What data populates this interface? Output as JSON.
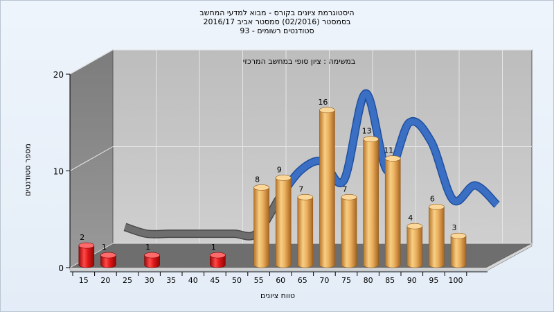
{
  "chart_data": {
    "type": "bar",
    "title_lines": [
      "היסטוגרמת ציונים בקורס - מבוא למדעי המחשב",
      "בסמסטר  (02/2016)  סמסטר אביב 2016/17",
      "סטודנטים רשומים - 93"
    ],
    "subtitle": "במשימה : ציון סופי במחשב המרכזי",
    "xlabel": "טווח ציונים",
    "ylabel": "מספר סטודנטים",
    "ylim": [
      0,
      20
    ],
    "yticks": [
      0,
      10,
      20
    ],
    "xticks": [
      15,
      20,
      25,
      30,
      35,
      40,
      45,
      50,
      55,
      60,
      65,
      70,
      75,
      80,
      85,
      90,
      95,
      100
    ],
    "bars": [
      {
        "x": 15,
        "value": 2,
        "label": "2"
      },
      {
        "x": 20,
        "value": 1,
        "label": "1"
      },
      {
        "x": 30,
        "value": 1,
        "label": "1"
      },
      {
        "x": 45,
        "value": 1,
        "label": "1"
      },
      {
        "x": 55,
        "value": 8,
        "label": "8"
      },
      {
        "x": 60,
        "value": 9,
        "label": "9"
      },
      {
        "x": 65,
        "value": 7,
        "label": "7"
      },
      {
        "x": 70,
        "value": 16,
        "label": "16"
      },
      {
        "x": 75,
        "value": 7,
        "label": "7"
      },
      {
        "x": 80,
        "value": 13,
        "label": "13"
      },
      {
        "x": 85,
        "value": 11,
        "label": "11"
      },
      {
        "x": 90,
        "value": 4,
        "label": "4"
      },
      {
        "x": 95,
        "value": 6,
        "label": "6"
      },
      {
        "x": 100,
        "value": 3,
        "label": "3"
      }
    ],
    "curve": [
      {
        "x": 20,
        "y": 3.2
      },
      {
        "x": 25,
        "y": 2.5
      },
      {
        "x": 30,
        "y": 2.5
      },
      {
        "x": 35,
        "y": 2.5
      },
      {
        "x": 40,
        "y": 2.5
      },
      {
        "x": 45,
        "y": 2.5
      },
      {
        "x": 50,
        "y": 2.5
      },
      {
        "x": 55,
        "y": 6
      },
      {
        "x": 60,
        "y": 9
      },
      {
        "x": 65,
        "y": 10
      },
      {
        "x": 70,
        "y": 8
      },
      {
        "x": 75,
        "y": 17
      },
      {
        "x": 80,
        "y": 9
      },
      {
        "x": 85,
        "y": 14
      },
      {
        "x": 90,
        "y": 12
      },
      {
        "x": 95,
        "y": 6
      },
      {
        "x": 100,
        "y": 7.5
      },
      {
        "x": 105,
        "y": 5.5
      }
    ],
    "colors": {
      "fail_bar": "#d81818",
      "pass_bar": "#e8a850",
      "curve_low": "#6e6e6e",
      "curve_high": "#3a6fc4",
      "back_wall": "#c8c8c8",
      "side_wall": "#8a8a8a",
      "floor": "#6e6e6e"
    },
    "pass_threshold": 55,
    "grid": true
  }
}
